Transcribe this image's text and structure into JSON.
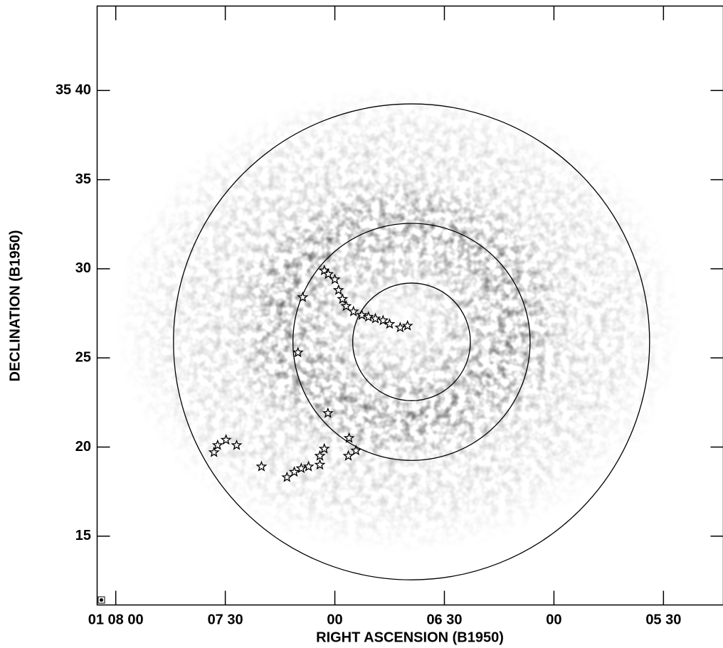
{
  "chart_data": {
    "type": "scatter",
    "x_label": "RIGHT ASCENSION (B1950)",
    "y_label": "DECLINATION (B1950)",
    "xlim": [
      485.1,
      313.6
    ],
    "ylim": [
      11.14,
      44.74
    ],
    "xticks": [
      {
        "value": 480,
        "label": "01 08 00"
      },
      {
        "value": 450,
        "label": "07 30"
      },
      {
        "value": 420,
        "label": "00"
      },
      {
        "value": 390,
        "label": "06 30"
      },
      {
        "value": 360,
        "label": "00"
      },
      {
        "value": 330,
        "label": "05 30"
      }
    ],
    "yticks": [
      {
        "value": 40,
        "label": "35 40"
      },
      35,
      30,
      25,
      20,
      15
    ],
    "color": "#000000",
    "x": [
      422.9,
      421.8,
      420.0,
      419.0,
      417.9,
      416.9,
      414.9,
      412.6,
      410.8,
      408.9,
      406.8,
      405.0,
      402.1,
      400.1,
      428.8,
      430.1,
      421.9,
      416.1,
      414.2,
      416.3,
      422.9,
      424.1,
      424.1,
      427.2,
      429.2,
      431.1,
      433.1,
      440.1,
      446.9,
      449.8,
      452.1,
      453.1
    ],
    "values": [
      29.9,
      29.7,
      29.4,
      28.8,
      28.3,
      27.9,
      27.6,
      27.4,
      27.3,
      27.2,
      27.1,
      26.9,
      26.7,
      26.8,
      28.4,
      25.3,
      21.9,
      20.5,
      19.8,
      19.5,
      19.9,
      19.5,
      19.0,
      18.9,
      18.8,
      18.6,
      18.3,
      18.9,
      20.1,
      20.4,
      20.1,
      19.7
    ],
    "circles": {
      "x": 399.0,
      "y": 25.9,
      "radius": [
        3.3,
        6.65,
        13.35
      ]
    }
  }
}
